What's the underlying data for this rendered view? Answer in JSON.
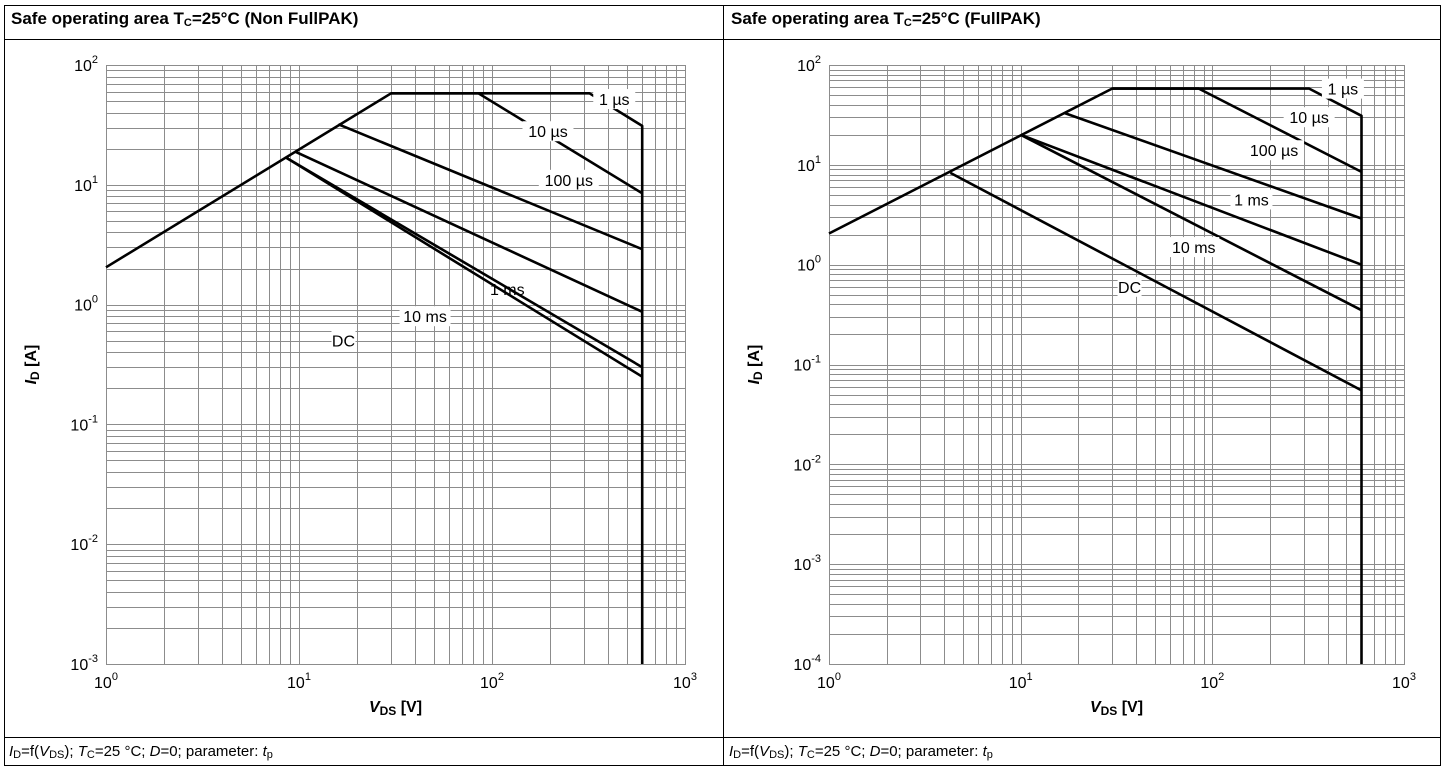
{
  "panels": [
    {
      "title_prefix": "Safe operating area T",
      "title_sub": "C",
      "title_suffix": "=25°C (Non FullPAK)",
      "caption": {
        "p1": "I",
        "s1": "D",
        "p2": "=f(",
        "p3": "V",
        "s2": "DS",
        "p4": "); ",
        "p5": "T",
        "s3": "C",
        "p6": "=25 °C; ",
        "p7": "D",
        "p8": "=0; parameter: ",
        "p9": "t",
        "s4": "p"
      }
    },
    {
      "title_prefix": "Safe operating area T",
      "title_sub": "C",
      "title_suffix": "=25°C (FullPAK)",
      "caption": {
        "p1": "I",
        "s1": "D",
        "p2": "=f(",
        "p3": "V",
        "s2": "DS",
        "p4": "); ",
        "p5": "T",
        "s3": "C",
        "p6": "=25 °C; ",
        "p7": "D",
        "p8": "=0; parameter: ",
        "p9": "t",
        "s4": "p"
      }
    }
  ],
  "chart_data": [
    {
      "type": "line",
      "title": "Safe operating area TC=25°C (Non FullPAK)",
      "xlabel": "VDS [V]",
      "ylabel": "ID [A]",
      "xscale": "log",
      "yscale": "log",
      "xlim": [
        1,
        1000
      ],
      "ylim": [
        0.001,
        100
      ],
      "grid": true,
      "x_ticks": [
        {
          "base": "10",
          "exp": "0"
        },
        {
          "base": "10",
          "exp": "1"
        },
        {
          "base": "10",
          "exp": "2"
        },
        {
          "base": "10",
          "exp": "3"
        }
      ],
      "y_ticks": [
        {
          "base": "10",
          "exp": "-3"
        },
        {
          "base": "10",
          "exp": "-2"
        },
        {
          "base": "10",
          "exp": "-1"
        },
        {
          "base": "10",
          "exp": "0"
        },
        {
          "base": "10",
          "exp": "1"
        },
        {
          "base": "10",
          "exp": "2"
        }
      ],
      "series": [
        {
          "name": "1 µs",
          "x": [
            1,
            30,
            320,
            600,
            600
          ],
          "y": [
            2.05,
            58,
            58,
            31,
            0.001
          ],
          "label_at": [
            430,
            52
          ]
        },
        {
          "name": "10 µs",
          "x": [
            30,
            85,
            600
          ],
          "y": [
            58,
            58,
            8.5
          ],
          "label_at": [
            195,
            28
          ]
        },
        {
          "name": "100 µs",
          "x": [
            16,
            600
          ],
          "y": [
            32,
            2.9
          ],
          "label_at": [
            250,
            11
          ]
        },
        {
          "name": "1 ms",
          "x": [
            9.5,
            600
          ],
          "y": [
            19,
            0.87
          ],
          "label_at": [
            120,
            1.35
          ]
        },
        {
          "name": "10 ms",
          "x": [
            8.5,
            600
          ],
          "y": [
            17,
            0.3
          ],
          "label_at": [
            45,
            0.8
          ]
        },
        {
          "name": "DC",
          "x": [
            8.5,
            600
          ],
          "y": [
            17,
            0.25
          ],
          "label_at": [
            17,
            0.5
          ]
        }
      ]
    },
    {
      "type": "line",
      "title": "Safe operating area TC=25°C (FullPAK)",
      "xlabel": "VDS [V]",
      "ylabel": "ID [A]",
      "xscale": "log",
      "yscale": "log",
      "xlim": [
        1,
        1000
      ],
      "ylim": [
        0.0001,
        100
      ],
      "grid": true,
      "x_ticks": [
        {
          "base": "10",
          "exp": "0"
        },
        {
          "base": "10",
          "exp": "1"
        },
        {
          "base": "10",
          "exp": "2"
        },
        {
          "base": "10",
          "exp": "3"
        }
      ],
      "y_ticks": [
        {
          "base": "10",
          "exp": "-4"
        },
        {
          "base": "10",
          "exp": "-3"
        },
        {
          "base": "10",
          "exp": "-2"
        },
        {
          "base": "10",
          "exp": "-1"
        },
        {
          "base": "10",
          "exp": "0"
        },
        {
          "base": "10",
          "exp": "1"
        },
        {
          "base": "10",
          "exp": "2"
        }
      ],
      "series": [
        {
          "name": "1 µs",
          "x": [
            1,
            30,
            320,
            600,
            600
          ],
          "y": [
            2.05,
            58,
            58,
            31,
            0.0001
          ],
          "label_at": [
            480,
            58
          ]
        },
        {
          "name": "10 µs",
          "x": [
            30,
            85,
            600
          ],
          "y": [
            58,
            58,
            8.5
          ],
          "label_at": [
            320,
            30
          ]
        },
        {
          "name": "100 µs",
          "x": [
            17,
            600
          ],
          "y": [
            33,
            2.9
          ],
          "label_at": [
            210,
            14
          ]
        },
        {
          "name": "1 ms",
          "x": [
            10,
            600
          ],
          "y": [
            20,
            1.0
          ],
          "label_at": [
            160,
            4.5
          ]
        },
        {
          "name": "10 ms",
          "x": [
            10,
            600
          ],
          "y": [
            20,
            0.35
          ],
          "label_at": [
            80,
            1.5
          ]
        },
        {
          "name": "DC",
          "x": [
            4.3,
            600
          ],
          "y": [
            8.3,
            0.055
          ],
          "label_at": [
            37,
            0.6
          ]
        }
      ]
    }
  ]
}
